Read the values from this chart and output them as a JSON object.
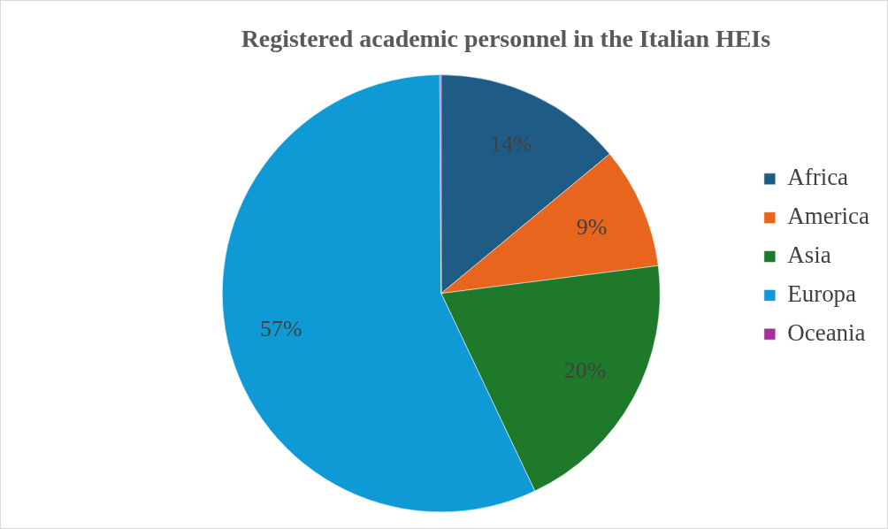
{
  "chart_data": {
    "type": "pie",
    "title": "Registered academic personnel in the Italian HEIs",
    "categories": [
      "Africa",
      "America",
      "Asia",
      "Europa",
      "Oceania"
    ],
    "values": [
      14,
      9,
      20,
      57,
      0.1
    ],
    "value_labels": [
      "14%",
      "9%",
      "20%",
      "57%",
      null
    ],
    "colors": [
      "#1f5c85",
      "#e8651e",
      "#1e7a2a",
      "#0f9ad6",
      "#a0309a"
    ],
    "legend": "right"
  }
}
